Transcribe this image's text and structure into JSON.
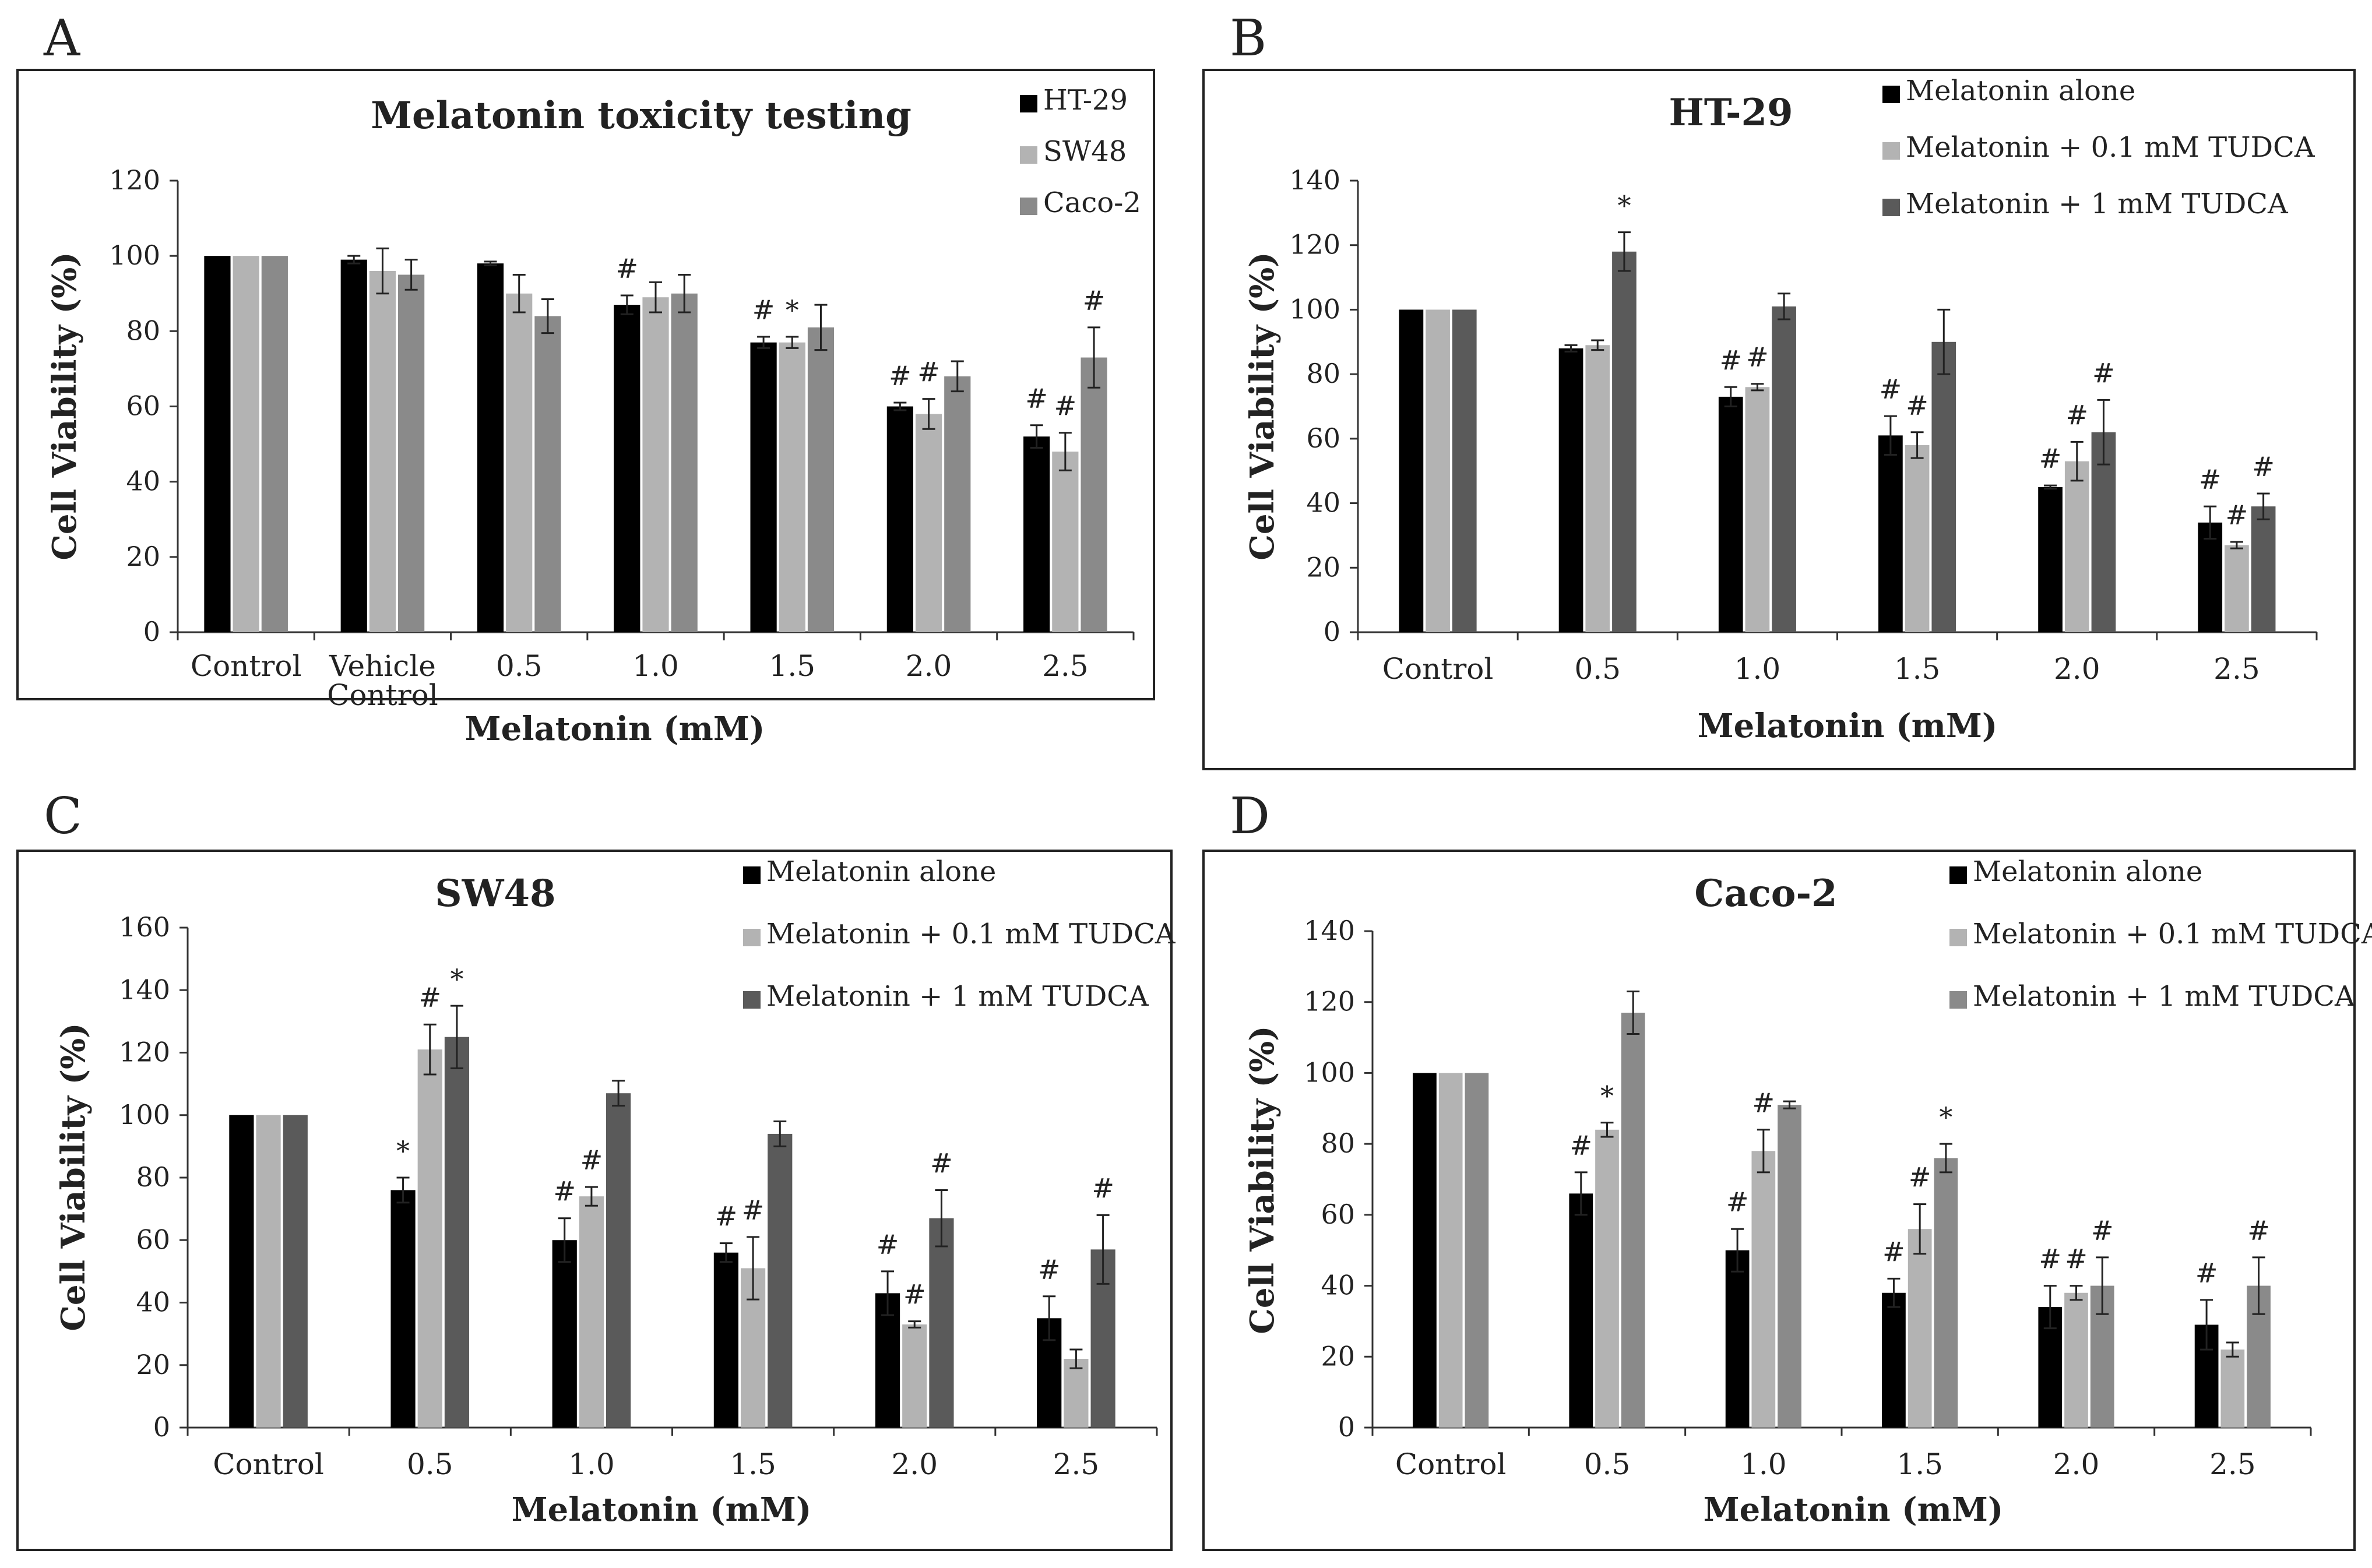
{
  "chart_data": [
    {
      "panel": "A",
      "type": "bar",
      "title": "Melatonin toxicity testing",
      "xlabel": "Melatonin (mM)",
      "ylabel": "Cell Viability (%)",
      "ylim": [
        0,
        120
      ],
      "yticks": [
        0,
        20,
        40,
        60,
        80,
        100,
        120
      ],
      "legend_position": "top-right",
      "categories": [
        [
          "Control"
        ],
        [
          "Vehicle",
          "Control"
        ],
        [
          "0.5"
        ],
        [
          "1.0"
        ],
        [
          "1.5"
        ],
        [
          "2.0"
        ],
        [
          "2.5"
        ]
      ],
      "series": [
        {
          "name": "HT-29",
          "color": "#000000",
          "values": [
            100,
            99,
            98,
            87,
            77,
            60,
            52
          ],
          "errors": [
            0,
            1,
            0.5,
            2.5,
            1.5,
            1,
            3
          ],
          "marks": [
            "",
            "",
            "",
            "#",
            "#",
            "#",
            "#"
          ]
        },
        {
          "name": "SW48",
          "color": "#b3b3b3",
          "values": [
            100,
            96,
            90,
            89,
            77,
            58,
            48
          ],
          "errors": [
            0,
            6,
            5,
            4,
            1.5,
            4,
            5
          ],
          "marks": [
            "",
            "",
            "",
            "",
            "*",
            "#",
            "#"
          ]
        },
        {
          "name": "Caco-2",
          "color": "#8a8a8a",
          "values": [
            100,
            95,
            84,
            90,
            81,
            68,
            73
          ],
          "errors": [
            0,
            4,
            4.5,
            5,
            6,
            4,
            8
          ],
          "marks": [
            "",
            "",
            "",
            "",
            "",
            "",
            "#"
          ]
        }
      ]
    },
    {
      "panel": "B",
      "type": "bar",
      "title": "HT-29",
      "xlabel": "Melatonin (mM)",
      "ylabel": "Cell Viability (%)",
      "ylim": [
        0,
        140
      ],
      "yticks": [
        0,
        20,
        40,
        60,
        80,
        100,
        120,
        140
      ],
      "legend_position": "top-right",
      "categories": [
        [
          "Control"
        ],
        [
          "0.5"
        ],
        [
          "1.0"
        ],
        [
          "1.5"
        ],
        [
          "2.0"
        ],
        [
          "2.5"
        ]
      ],
      "series": [
        {
          "name": "Melatonin alone",
          "color": "#000000",
          "values": [
            100,
            88,
            73,
            61,
            45,
            34
          ],
          "errors": [
            0,
            1,
            3,
            6,
            0.5,
            5
          ],
          "marks": [
            "",
            "",
            "#",
            "#",
            "#",
            "#"
          ]
        },
        {
          "name": "Melatonin + 0.1 mM TUDCA",
          "color": "#b3b3b3",
          "values": [
            100,
            89,
            76,
            58,
            53,
            27
          ],
          "errors": [
            0,
            1.5,
            1,
            4,
            6,
            1
          ],
          "marks": [
            "",
            "",
            "#",
            "#",
            "#",
            "#"
          ]
        },
        {
          "name": "Melatonin + 1 mM TUDCA",
          "color": "#5a5a5a",
          "values": [
            100,
            118,
            101,
            90,
            62,
            39
          ],
          "errors": [
            0,
            6,
            4,
            10,
            10,
            4
          ],
          "marks": [
            "",
            "*",
            "",
            "",
            "#",
            "#"
          ]
        }
      ]
    },
    {
      "panel": "C",
      "type": "bar",
      "title": "SW48",
      "xlabel": "Melatonin (mM)",
      "ylabel": "Cell Viability (%)",
      "ylim": [
        0,
        160
      ],
      "yticks": [
        0,
        20,
        40,
        60,
        80,
        100,
        120,
        140,
        160
      ],
      "legend_position": "top-right",
      "categories": [
        [
          "Control"
        ],
        [
          "0.5"
        ],
        [
          "1.0"
        ],
        [
          "1.5"
        ],
        [
          "2.0"
        ],
        [
          "2.5"
        ]
      ],
      "series": [
        {
          "name": "Melatonin alone",
          "color": "#000000",
          "values": [
            100,
            76,
            60,
            56,
            43,
            35
          ],
          "errors": [
            0,
            4,
            7,
            3,
            7,
            7
          ],
          "marks": [
            "",
            "*",
            "#",
            "#",
            "#",
            "#"
          ]
        },
        {
          "name": "Melatonin + 0.1 mM TUDCA",
          "color": "#b3b3b3",
          "values": [
            100,
            121,
            74,
            51,
            33,
            22
          ],
          "errors": [
            0,
            8,
            3,
            10,
            1,
            3
          ],
          "marks": [
            "",
            "#",
            "#",
            "#",
            "#",
            ""
          ]
        },
        {
          "name": "Melatonin + 1 mM TUDCA",
          "color": "#5a5a5a",
          "values": [
            100,
            125,
            107,
            94,
            67,
            57
          ],
          "errors": [
            0,
            10,
            4,
            4,
            9,
            11
          ],
          "marks": [
            "",
            "*",
            "",
            "",
            "#",
            "#"
          ]
        }
      ]
    },
    {
      "panel": "D",
      "type": "bar",
      "title": "Caco-2",
      "xlabel": "Melatonin (mM)",
      "ylabel": "Cell Viability (%)",
      "ylim": [
        0,
        140
      ],
      "yticks": [
        0,
        20,
        40,
        60,
        80,
        100,
        120,
        140
      ],
      "legend_position": "top-right",
      "categories": [
        [
          "Control"
        ],
        [
          "0.5"
        ],
        [
          "1.0"
        ],
        [
          "1.5"
        ],
        [
          "2.0"
        ],
        [
          "2.5"
        ]
      ],
      "series": [
        {
          "name": "Melatonin alone",
          "color": "#000000",
          "values": [
            100,
            66,
            50,
            38,
            34,
            29
          ],
          "errors": [
            0,
            6,
            6,
            4,
            6,
            7
          ],
          "marks": [
            "",
            "#",
            "#",
            "#",
            "#",
            "#"
          ]
        },
        {
          "name": "Melatonin + 0.1 mM TUDCA",
          "color": "#b3b3b3",
          "values": [
            100,
            84,
            78,
            56,
            38,
            22
          ],
          "errors": [
            0,
            2,
            6,
            7,
            2,
            2
          ],
          "marks": [
            "",
            "*",
            "#",
            "#",
            "#",
            ""
          ]
        },
        {
          "name": "Melatonin + 1 mM TUDCA",
          "color": "#8a8a8a",
          "values": [
            100,
            117,
            91,
            76,
            40,
            40
          ],
          "errors": [
            0,
            6,
            1,
            4,
            8,
            8
          ],
          "marks": [
            "",
            "",
            "",
            "*",
            "#",
            "#"
          ]
        }
      ]
    }
  ]
}
